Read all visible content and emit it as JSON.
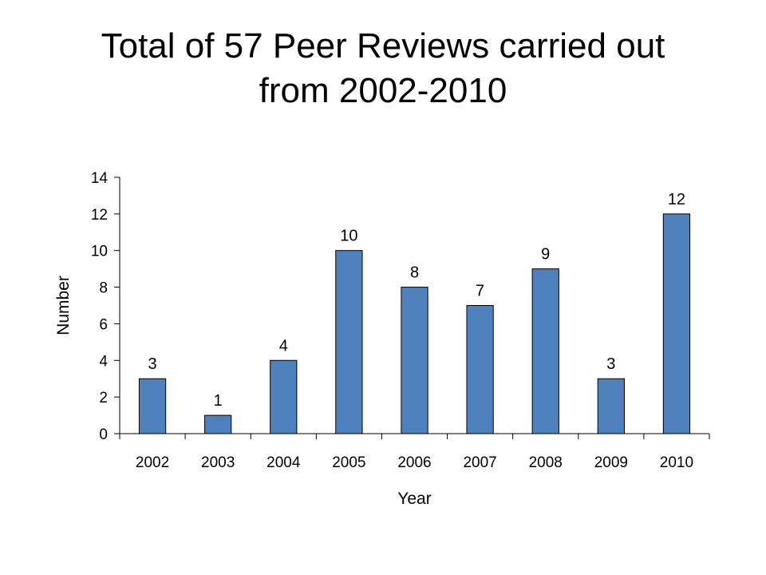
{
  "slide": {
    "title_line1": "Total of 57 Peer Reviews carried out",
    "title_line2": "from 2002-2010"
  },
  "chart_data": {
    "type": "bar",
    "title": "",
    "xlabel": "Year",
    "ylabel": "Number",
    "categories": [
      "2002",
      "2003",
      "2004",
      "2005",
      "2006",
      "2007",
      "2008",
      "2009",
      "2010"
    ],
    "values": [
      3,
      1,
      4,
      10,
      8,
      7,
      9,
      3,
      12
    ],
    "ylim": [
      0,
      14
    ],
    "yticks": [
      0,
      2,
      4,
      6,
      8,
      10,
      12,
      14
    ],
    "grid": false,
    "legend": "none",
    "bar_color": "#4F81BD",
    "bar_edge_color": "#000000"
  }
}
